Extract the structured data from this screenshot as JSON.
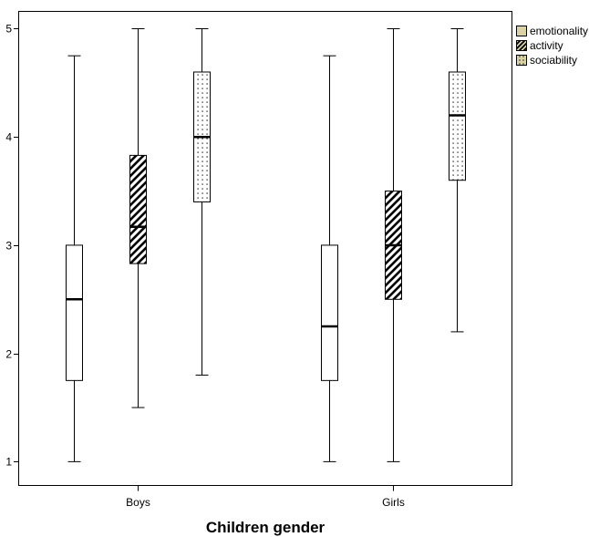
{
  "chart_data": {
    "type": "boxplot",
    "xlabel": "Children gender",
    "ylabel": "",
    "ylim": [
      0.78,
      5.16
    ],
    "yticks": [
      1,
      2,
      3,
      4,
      5
    ],
    "categories": [
      "Boys",
      "Girls"
    ],
    "legend_position": "top-right",
    "series": [
      {
        "name": "emotionality",
        "pattern": "none",
        "legend_color": "#d9d3a6",
        "boxes": [
          {
            "category": "Boys",
            "min": 1.0,
            "q1": 1.75,
            "median": 2.5,
            "q3": 3.0,
            "max": 4.75
          },
          {
            "category": "Girls",
            "min": 1.0,
            "q1": 1.75,
            "median": 2.25,
            "q3": 3.0,
            "max": 4.75
          }
        ]
      },
      {
        "name": "activity",
        "pattern": "diagonal-stripes",
        "legend_color": "#d9d3a6",
        "boxes": [
          {
            "category": "Boys",
            "min": 1.5,
            "q1": 2.83,
            "median": 3.17,
            "q3": 3.83,
            "max": 5.0
          },
          {
            "category": "Girls",
            "min": 1.0,
            "q1": 2.5,
            "median": 3.0,
            "q3": 3.5,
            "max": 5.0
          }
        ]
      },
      {
        "name": "sociability",
        "pattern": "dots",
        "legend_color": "#d9d3a6",
        "boxes": [
          {
            "category": "Boys",
            "min": 1.8,
            "q1": 3.4,
            "median": 4.0,
            "q3": 4.6,
            "max": 5.0
          },
          {
            "category": "Girls",
            "min": 2.2,
            "q1": 3.6,
            "median": 4.2,
            "q3": 4.6,
            "max": 5.0
          }
        ]
      }
    ]
  }
}
